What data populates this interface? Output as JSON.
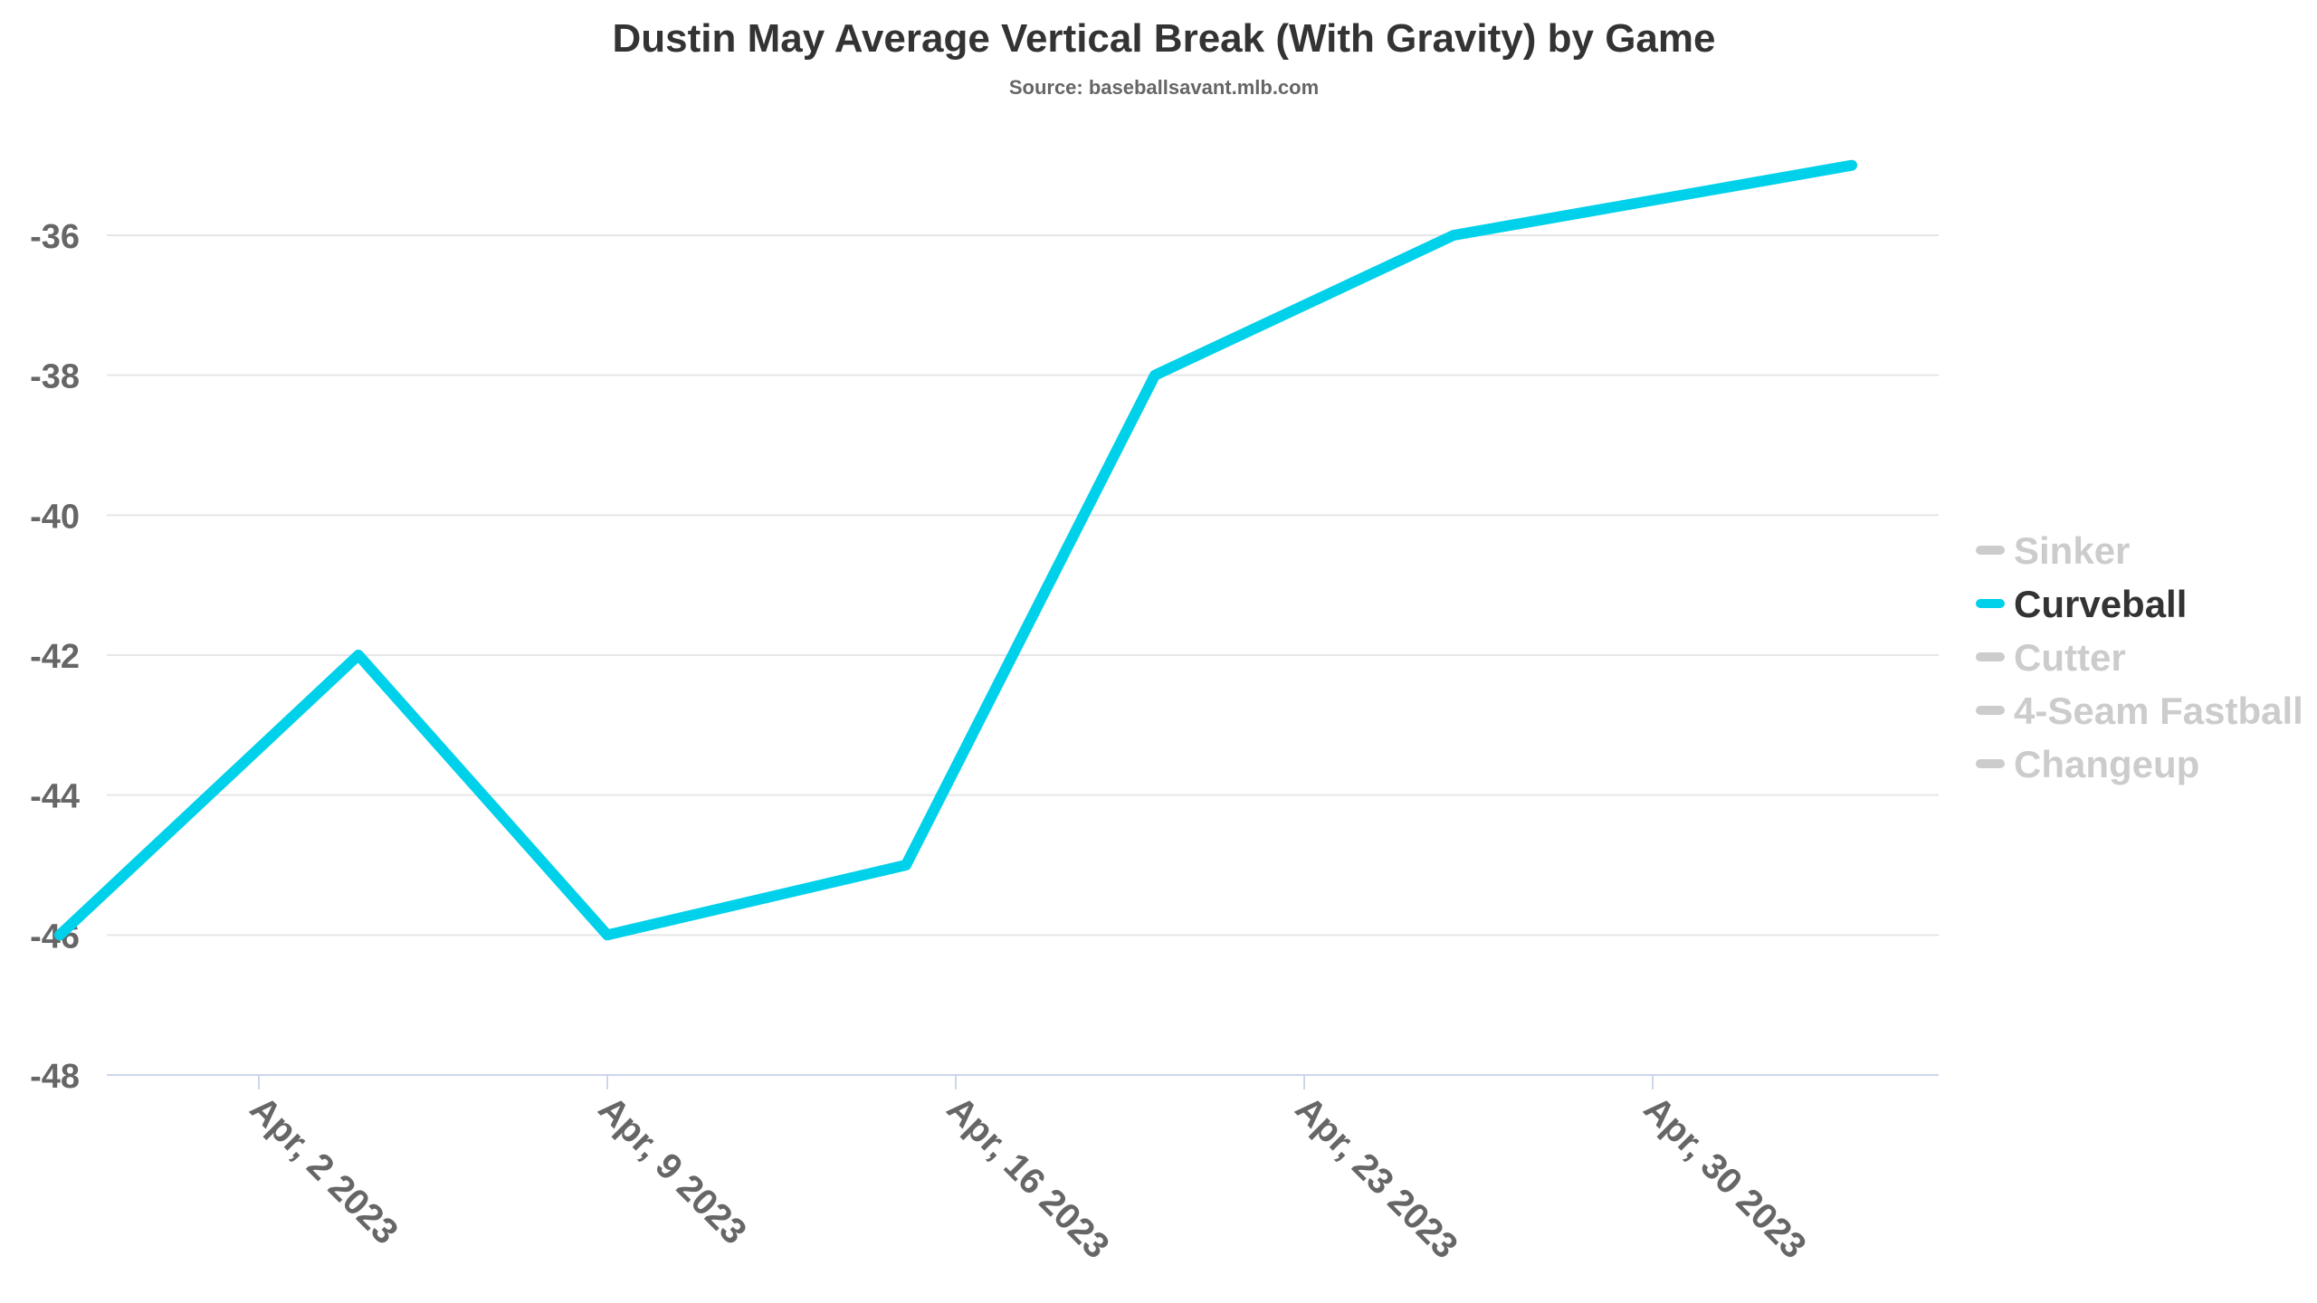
{
  "chart_data": {
    "type": "line",
    "title": "Dustin May Average Vertical Break (With Gravity) by Game",
    "subtitle": "Source: baseballsavant.mlb.com",
    "xlabel": "",
    "ylabel": "",
    "x_axis_type": "datetime",
    "x_range": [
      "2023-03-29",
      "2023-05-05"
    ],
    "x_ticks": [
      {
        "date": "2023-04-02",
        "label": "Apr, 2 2023"
      },
      {
        "date": "2023-04-09",
        "label": "Apr, 9 2023"
      },
      {
        "date": "2023-04-16",
        "label": "Apr, 16 2023"
      },
      {
        "date": "2023-04-23",
        "label": "Apr, 23 2023"
      },
      {
        "date": "2023-04-30",
        "label": "Apr, 30 2023"
      }
    ],
    "ylim": [
      -48,
      -35
    ],
    "y_ticks": [
      -36,
      -38,
      -40,
      -42,
      -44,
      -46,
      -48
    ],
    "grid": true,
    "legend_position": "right",
    "series": [
      {
        "name": "Sinker",
        "color": "#cccccc",
        "visible": false,
        "x": [],
        "y": []
      },
      {
        "name": "Curveball",
        "color": "#00d1ea",
        "visible": true,
        "x": [
          "2023-03-29",
          "2023-04-04",
          "2023-04-09",
          "2023-04-15",
          "2023-04-20",
          "2023-04-26",
          "2023-05-04"
        ],
        "y": [
          -46,
          -42,
          -46,
          -45,
          -38,
          -36,
          -35
        ]
      },
      {
        "name": "Cutter",
        "color": "#cccccc",
        "visible": false,
        "x": [],
        "y": []
      },
      {
        "name": "4-Seam Fastball",
        "color": "#cccccc",
        "visible": false,
        "x": [],
        "y": []
      },
      {
        "name": "Changeup",
        "color": "#cccccc",
        "visible": false,
        "x": [],
        "y": []
      }
    ]
  },
  "colors": {
    "active_series": "#00d1ea",
    "inactive_legend": "#cccccc",
    "active_legend_text": "#333333",
    "grid": "#e6e6e6",
    "axis": "#ccd6eb",
    "tick_text": "#666666"
  }
}
